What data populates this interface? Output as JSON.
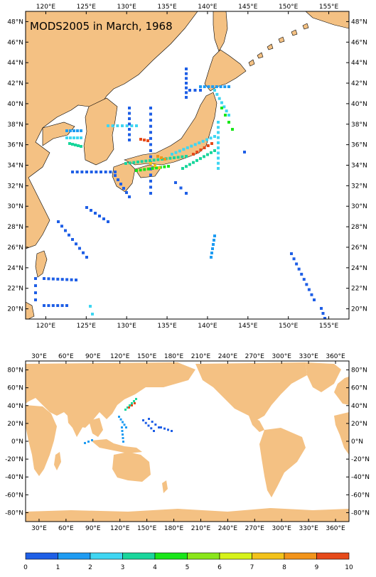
{
  "title": "MODS2005 in March, 1968",
  "colors": {
    "land": "#f4c183",
    "ocean": "#ffffff",
    "scale": [
      "#1f5fe6",
      "#1f9cf2",
      "#3fd6f2",
      "#19d69c",
      "#19e619",
      "#8ae61a",
      "#d6f21a",
      "#f2c21a",
      "#f2941a",
      "#e64a1a"
    ]
  },
  "top_map": {
    "x_ticks": [
      "120°E",
      "125°E",
      "130°E",
      "135°E",
      "140°E",
      "145°E",
      "150°E",
      "155°E"
    ],
    "y_ticks": [
      "48°N",
      "46°N",
      "44°N",
      "42°N",
      "40°N",
      "38°N",
      "36°N",
      "34°N",
      "32°N",
      "30°N",
      "28°N",
      "26°N",
      "24°N",
      "22°N",
      "20°N"
    ]
  },
  "bottom_map": {
    "x_ticks": [
      "30°E",
      "60°E",
      "90°E",
      "120°E",
      "150°E",
      "180°E",
      "210°E",
      "240°E",
      "270°E",
      "300°E",
      "330°E",
      "360°E"
    ],
    "y_ticks": [
      "80°N",
      "60°N",
      "40°N",
      "20°N",
      "0°N",
      "-20°N",
      "-40°N",
      "-60°N",
      "-80°N"
    ]
  },
  "colorbar": {
    "labels": [
      "0",
      "1",
      "2",
      "3",
      "4",
      "5",
      "6",
      "7",
      "8",
      "9",
      "10"
    ]
  }
}
